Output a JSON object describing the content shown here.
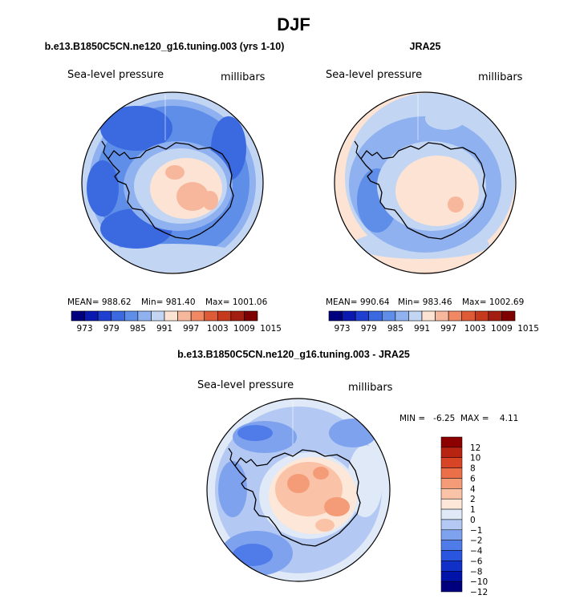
{
  "page": {
    "title": "DJF"
  },
  "colors": {
    "cbar": [
      "#00007f",
      "#0a1ab0",
      "#1f3fd0",
      "#3b6ae0",
      "#5f8ee8",
      "#8fb1ef",
      "#c2d6f4",
      "#fde3d3",
      "#f7b79d",
      "#ef8863",
      "#de5b37",
      "#c5391c",
      "#a21e10",
      "#7f0000"
    ],
    "diff": [
      "#00007f",
      "#0012a8",
      "#1030c8",
      "#2a55de",
      "#4f7ce8",
      "#7fa2ee",
      "#b3c9f3",
      "#dfe9f7",
      "#fde7d8",
      "#fac3a8",
      "#f49c78",
      "#eb6f48",
      "#d84426",
      "#b82412",
      "#8c0000"
    ]
  },
  "panels": [
    {
      "title": "b.e13.B1850C5CN.ne120_g16.tuning.003 (yrs 1-10)",
      "left_label": "Sea-level pressure",
      "right_label": "millibars",
      "stats": {
        "mean": "MEAN= 988.62",
        "min": "Min= 981.40",
        "max": "Max= 1001.06"
      },
      "cbar_ticks": [
        "973",
        "979",
        "985",
        "991",
        "997",
        "1003",
        "1009",
        "1015"
      ]
    },
    {
      "title": "JRA25",
      "left_label": "Sea-level pressure",
      "right_label": "millibars",
      "stats": {
        "mean": "MEAN= 990.64",
        "min": "Min= 983.46",
        "max": "Max= 1002.69"
      },
      "cbar_ticks": [
        "973",
        "979",
        "985",
        "991",
        "997",
        "1003",
        "1009",
        "1015"
      ]
    }
  ],
  "diff": {
    "title": "b.e13.B1850C5CN.ne120_g16.tuning.003 - JRA25",
    "left_label": "Sea-level pressure",
    "right_label": "millibars",
    "minmax": "MIN =   -6.25  MAX =    4.11",
    "cbar_ticks": [
      "12",
      "10",
      "8",
      "6",
      "4",
      "2",
      "1",
      "0",
      "−1",
      "−2",
      "−4",
      "−6",
      "−8",
      "−10",
      "−12"
    ]
  },
  "chart_data": [
    {
      "type": "heatmap",
      "title": "b.e13.B1850C5CN.ne120_g16.tuning.003 (yrs 1-10)",
      "variable": "Sea-level pressure",
      "units": "millibars",
      "mean": 988.62,
      "min": 981.4,
      "max": 1001.06,
      "levels": [
        973,
        979,
        985,
        991,
        997,
        1003,
        1009,
        1015
      ]
    },
    {
      "type": "heatmap",
      "title": "JRA25",
      "variable": "Sea-level pressure",
      "units": "millibars",
      "mean": 990.64,
      "min": 983.46,
      "max": 1002.69,
      "levels": [
        973,
        979,
        985,
        991,
        997,
        1003,
        1009,
        1015
      ]
    },
    {
      "type": "heatmap",
      "title": "b.e13.B1850C5CN.ne120_g16.tuning.003 - JRA25",
      "variable": "Sea-level pressure",
      "units": "millibars",
      "min": -6.25,
      "max": 4.11,
      "levels": [
        -12,
        -10,
        -8,
        -6,
        -4,
        -2,
        -1,
        0,
        1,
        2,
        4,
        6,
        8,
        10,
        12
      ]
    }
  ]
}
